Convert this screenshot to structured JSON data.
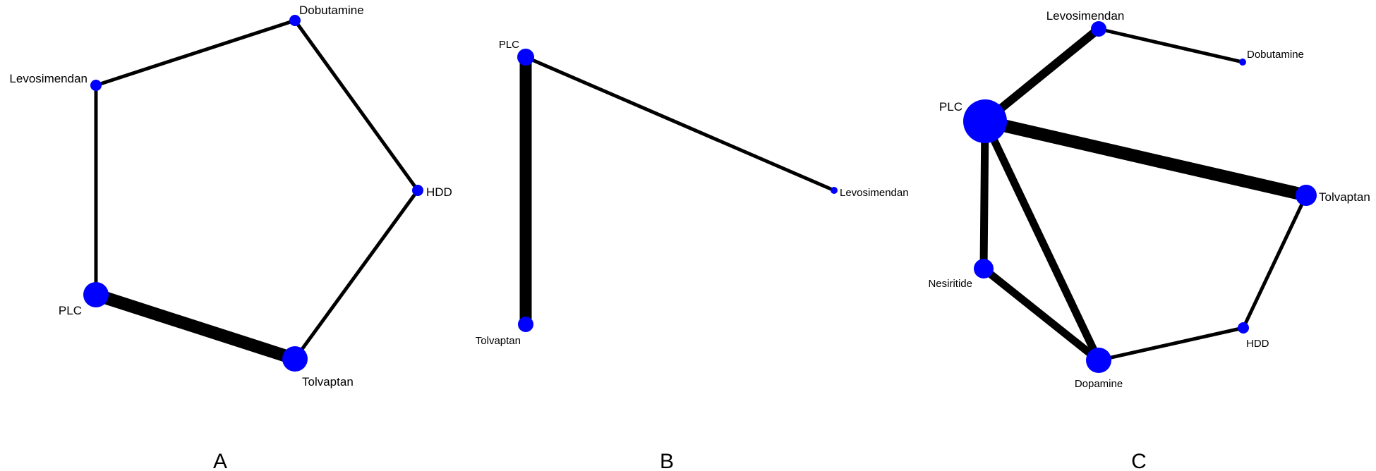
{
  "colors": {
    "node": "#0000ff",
    "edge": "#000000",
    "background": "#ffffff"
  },
  "panels": [
    {
      "letter": "A",
      "nodes": [
        {
          "id": "dobutamine",
          "label": "Dobutamine"
        },
        {
          "id": "levosimendan",
          "label": "Levosimendan"
        },
        {
          "id": "hdd",
          "label": "HDD"
        },
        {
          "id": "plc",
          "label": "PLC"
        },
        {
          "id": "tolvaptan",
          "label": "Tolvaptan"
        }
      ],
      "edges": [
        {
          "from": "levosimendan",
          "to": "dobutamine"
        },
        {
          "from": "dobutamine",
          "to": "hdd"
        },
        {
          "from": "hdd",
          "to": "tolvaptan"
        },
        {
          "from": "levosimendan",
          "to": "plc"
        },
        {
          "from": "plc",
          "to": "tolvaptan"
        }
      ]
    },
    {
      "letter": "B",
      "nodes": [
        {
          "id": "plc",
          "label": "PLC"
        },
        {
          "id": "levosimendan",
          "label": "Levosimendan"
        },
        {
          "id": "tolvaptan",
          "label": "Tolvaptan"
        }
      ],
      "edges": [
        {
          "from": "plc",
          "to": "levosimendan"
        },
        {
          "from": "plc",
          "to": "tolvaptan"
        }
      ]
    },
    {
      "letter": "C",
      "nodes": [
        {
          "id": "levosimendan",
          "label": "Levosimendan"
        },
        {
          "id": "dobutamine",
          "label": "Dobutamine"
        },
        {
          "id": "plc",
          "label": "PLC"
        },
        {
          "id": "tolvaptan",
          "label": "Tolvaptan"
        },
        {
          "id": "nesiritide",
          "label": "Nesiritide"
        },
        {
          "id": "hdd",
          "label": "HDD"
        },
        {
          "id": "dopamine",
          "label": "Dopamine"
        }
      ],
      "edges": [
        {
          "from": "levosimendan",
          "to": "dobutamine"
        },
        {
          "from": "plc",
          "to": "levosimendan"
        },
        {
          "from": "plc",
          "to": "tolvaptan"
        },
        {
          "from": "plc",
          "to": "nesiritide"
        },
        {
          "from": "plc",
          "to": "dopamine"
        },
        {
          "from": "nesiritide",
          "to": "dopamine"
        },
        {
          "from": "dopamine",
          "to": "hdd"
        },
        {
          "from": "hdd",
          "to": "tolvaptan"
        }
      ]
    }
  ]
}
